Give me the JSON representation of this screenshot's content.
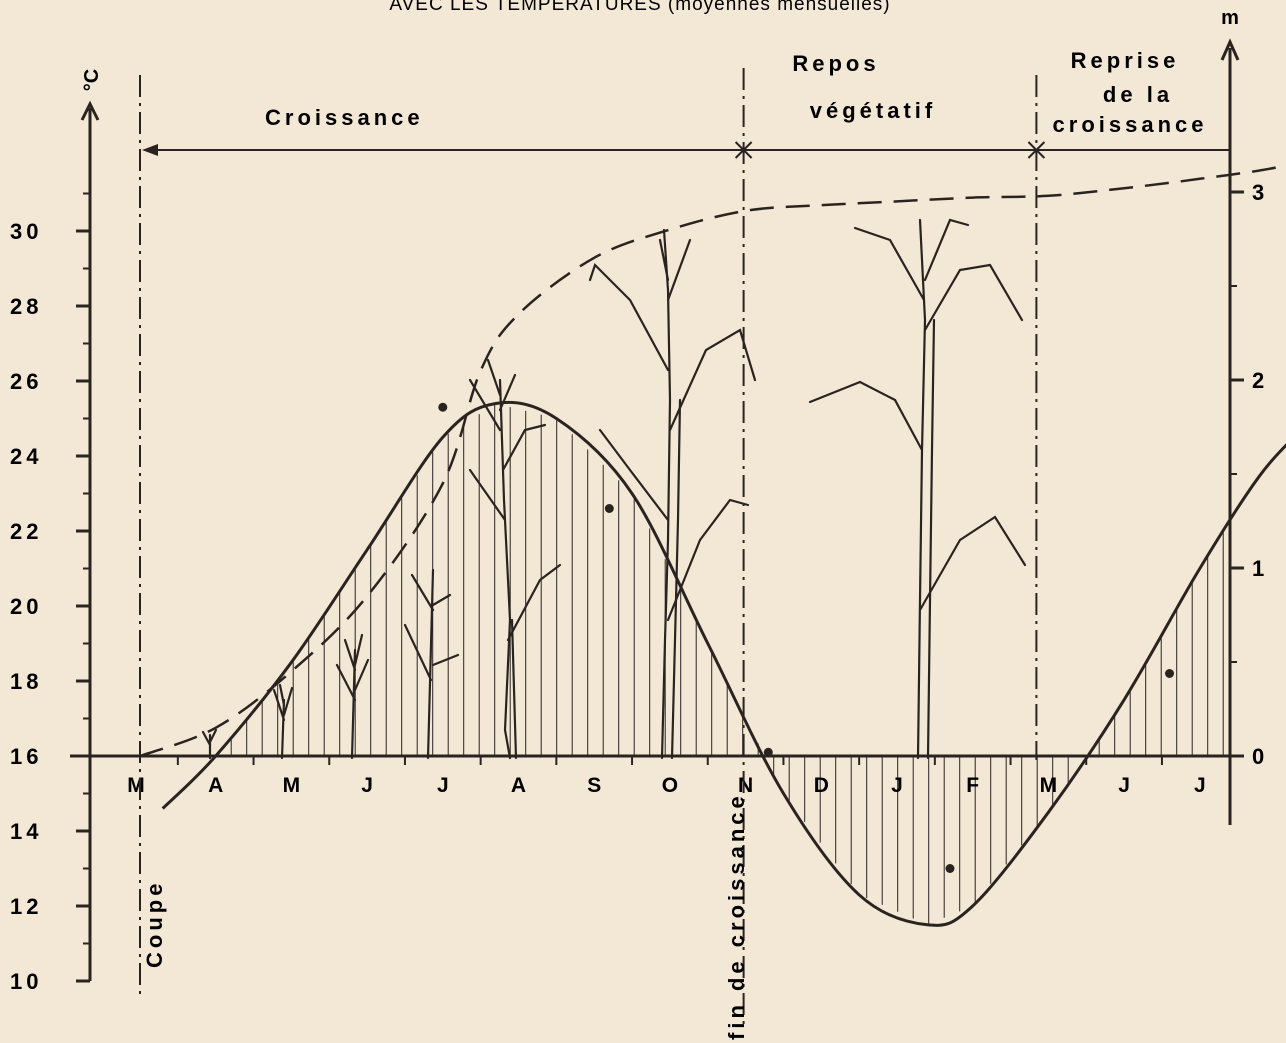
{
  "title": "AVEC LES TEMPERATURES (moyennes mensuelles)",
  "chart_data": {
    "type": "line",
    "title": "AVEC LES TEMPERATURES (moyennes mensuelles)",
    "left_axis": {
      "unit": "°C",
      "ticks": [
        10,
        12,
        14,
        16,
        18,
        20,
        22,
        24,
        26,
        28,
        30
      ],
      "tick_labels": [
        "10",
        "12",
        "14",
        "16",
        "18",
        "20",
        "22",
        "24",
        "26",
        "28",
        "30"
      ],
      "range": [
        10,
        32
      ],
      "baseline": 16
    },
    "right_axis": {
      "unit": "m",
      "ticks": [
        0,
        1,
        2,
        3
      ],
      "tick_labels": [
        "0",
        "1",
        "2",
        "3"
      ],
      "range": [
        0,
        3.2
      ]
    },
    "months": [
      "M",
      "A",
      "M",
      "J",
      "J",
      "A",
      "S",
      "O",
      "N",
      "D",
      "J",
      "F",
      "M",
      "J",
      "J"
    ],
    "series": [
      {
        "kind": "temperature",
        "axis": "left",
        "style": "solid",
        "points": [
          [
            0.3,
            14.6
          ],
          [
            1.0,
            16.0
          ],
          [
            2.0,
            18.5
          ],
          [
            3.0,
            21.5
          ],
          [
            4.0,
            24.5
          ],
          [
            4.7,
            25.4
          ],
          [
            5.5,
            25.0
          ],
          [
            6.5,
            23.0
          ],
          [
            7.5,
            19.0
          ],
          [
            8.5,
            15.0
          ],
          [
            9.5,
            12.3
          ],
          [
            10.4,
            11.5
          ],
          [
            11.0,
            12.0
          ],
          [
            12.0,
            14.5
          ],
          [
            13.0,
            17.5
          ],
          [
            14.0,
            21.0
          ],
          [
            14.8,
            23.5
          ],
          [
            15.4,
            24.8
          ]
        ]
      },
      {
        "kind": "height",
        "axis": "right",
        "style": "dashed",
        "points": [
          [
            0.0,
            0.0
          ],
          [
            1.0,
            0.15
          ],
          [
            2.0,
            0.45
          ],
          [
            3.0,
            0.85
          ],
          [
            4.0,
            1.45
          ],
          [
            4.5,
            2.05
          ],
          [
            5.0,
            2.35
          ],
          [
            6.0,
            2.65
          ],
          [
            7.0,
            2.8
          ],
          [
            8.0,
            2.9
          ],
          [
            9.0,
            2.93
          ],
          [
            10.0,
            2.95
          ],
          [
            11.0,
            2.97
          ],
          [
            12.0,
            2.98
          ],
          [
            13.0,
            3.02
          ],
          [
            14.0,
            3.07
          ],
          [
            15.0,
            3.13
          ],
          [
            15.5,
            3.2
          ]
        ]
      }
    ],
    "monthly_markers": [
      [
        4.0,
        25.3
      ],
      [
        6.2,
        22.6
      ],
      [
        8.3,
        16.1
      ],
      [
        10.7,
        13.0
      ],
      [
        13.6,
        18.2
      ]
    ],
    "phases": [
      {
        "label": "Croissance",
        "start": 0,
        "end": 8
      },
      {
        "label": "Repos végétatif",
        "start": 8,
        "end": 12
      },
      {
        "label": "Reprise de la croissance",
        "start": 12,
        "end": 15.4
      }
    ],
    "vertical_labels": {
      "cut": "Coupe",
      "growth_end": "fin de croissance"
    }
  }
}
